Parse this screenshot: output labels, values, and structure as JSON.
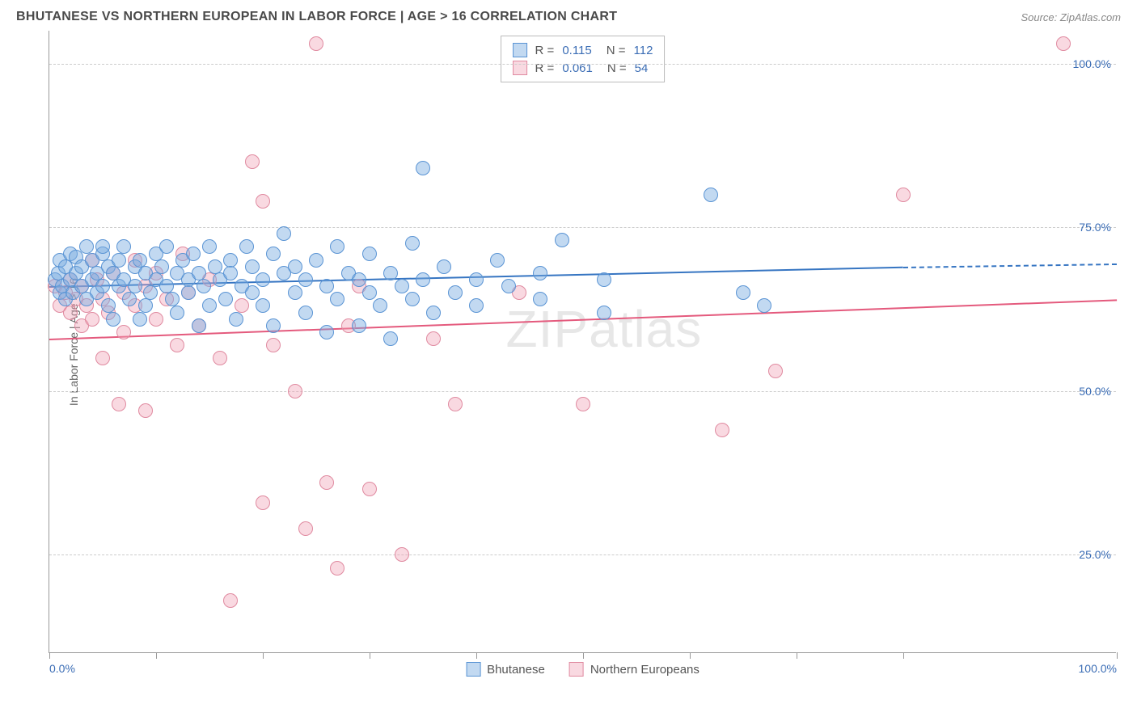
{
  "header": {
    "title": "BHUTANESE VS NORTHERN EUROPEAN IN LABOR FORCE | AGE > 16 CORRELATION CHART",
    "source": "Source: ZipAtlas.com"
  },
  "watermark": {
    "bold": "ZIP",
    "light": "atlas"
  },
  "chart": {
    "type": "scatter",
    "y_label": "In Labor Force | Age > 16",
    "xlim": [
      0,
      100
    ],
    "ylim": [
      10,
      105
    ],
    "x_ticks": [
      0,
      10,
      20,
      30,
      40,
      50,
      60,
      70,
      80,
      100
    ],
    "x_tick_labels": {
      "0": "0.0%",
      "100": "100.0%"
    },
    "y_gridlines": [
      25,
      50,
      75,
      100
    ],
    "y_tick_labels": {
      "25": "25.0%",
      "50": "50.0%",
      "75": "75.0%",
      "100": "100.0%"
    },
    "grid_color": "#cccccc",
    "axis_color": "#999999",
    "background_color": "#ffffff",
    "marker_radius": 9,
    "marker_border_width": 1.5,
    "series": {
      "bhutanese": {
        "label": "Bhutanese",
        "fill": "rgba(120,170,225,0.45)",
        "stroke": "#5a94d4",
        "line_color": "#3675c2",
        "R": "0.115",
        "N": "112",
        "trendline": {
          "x1": 0,
          "y1": 66,
          "x2": 80,
          "y2": 69,
          "dash_from_x": 80,
          "x_end": 100,
          "y_end": 69.5
        },
        "points": [
          [
            0.5,
            67
          ],
          [
            0.8,
            68
          ],
          [
            1,
            70
          ],
          [
            1,
            65
          ],
          [
            1.2,
            66
          ],
          [
            1.5,
            69
          ],
          [
            1.5,
            64
          ],
          [
            2,
            71
          ],
          [
            2,
            67
          ],
          [
            2.2,
            65
          ],
          [
            2.5,
            68
          ],
          [
            2.5,
            70.5
          ],
          [
            3,
            66
          ],
          [
            3,
            69
          ],
          [
            3.5,
            72
          ],
          [
            3.5,
            64
          ],
          [
            4,
            70
          ],
          [
            4,
            67
          ],
          [
            4.5,
            65
          ],
          [
            4.5,
            68
          ],
          [
            5,
            71
          ],
          [
            5,
            72
          ],
          [
            5,
            66
          ],
          [
            5.5,
            69
          ],
          [
            5.5,
            63
          ],
          [
            6,
            68
          ],
          [
            6,
            61
          ],
          [
            6.5,
            70
          ],
          [
            6.5,
            66
          ],
          [
            7,
            67
          ],
          [
            7,
            72
          ],
          [
            7.5,
            64
          ],
          [
            8,
            69
          ],
          [
            8,
            66
          ],
          [
            8.5,
            70
          ],
          [
            8.5,
            61
          ],
          [
            9,
            68
          ],
          [
            9,
            63
          ],
          [
            9.5,
            65
          ],
          [
            10,
            71
          ],
          [
            10,
            67
          ],
          [
            10.5,
            69
          ],
          [
            11,
            66
          ],
          [
            11,
            72
          ],
          [
            11.5,
            64
          ],
          [
            12,
            68
          ],
          [
            12,
            62
          ],
          [
            12.5,
            70
          ],
          [
            13,
            67
          ],
          [
            13,
            65
          ],
          [
            13.5,
            71
          ],
          [
            14,
            68
          ],
          [
            14,
            60
          ],
          [
            14.5,
            66
          ],
          [
            15,
            72
          ],
          [
            15,
            63
          ],
          [
            15.5,
            69
          ],
          [
            16,
            67
          ],
          [
            16.5,
            64
          ],
          [
            17,
            70
          ],
          [
            17,
            68
          ],
          [
            17.5,
            61
          ],
          [
            18,
            66
          ],
          [
            18.5,
            72
          ],
          [
            19,
            65
          ],
          [
            19,
            69
          ],
          [
            20,
            67
          ],
          [
            20,
            63
          ],
          [
            21,
            71
          ],
          [
            21,
            60
          ],
          [
            22,
            68
          ],
          [
            22,
            74
          ],
          [
            23,
            65
          ],
          [
            23,
            69
          ],
          [
            24,
            67
          ],
          [
            24,
            62
          ],
          [
            25,
            70
          ],
          [
            26,
            66
          ],
          [
            26,
            59
          ],
          [
            27,
            72
          ],
          [
            27,
            64
          ],
          [
            28,
            68
          ],
          [
            29,
            67
          ],
          [
            29,
            60
          ],
          [
            30,
            65
          ],
          [
            30,
            71
          ],
          [
            31,
            63
          ],
          [
            32,
            68
          ],
          [
            32,
            58
          ],
          [
            33,
            66
          ],
          [
            34,
            64
          ],
          [
            34,
            72.5
          ],
          [
            35,
            84
          ],
          [
            35,
            67
          ],
          [
            36,
            62
          ],
          [
            37,
            69
          ],
          [
            38,
            65
          ],
          [
            40,
            67
          ],
          [
            40,
            63
          ],
          [
            42,
            70
          ],
          [
            43,
            66
          ],
          [
            46,
            68
          ],
          [
            46,
            64
          ],
          [
            48,
            73
          ],
          [
            52,
            67
          ],
          [
            52,
            62
          ],
          [
            62,
            80
          ],
          [
            65,
            65
          ],
          [
            67,
            63
          ]
        ]
      },
      "northern_europeans": {
        "label": "Northern Europeans",
        "fill": "rgba(240,160,180,0.40)",
        "stroke": "#e08aa0",
        "line_color": "#e45a7d",
        "R": "0.061",
        "N": "54",
        "trendline": {
          "x1": 0,
          "y1": 58,
          "x2": 100,
          "y2": 64
        },
        "points": [
          [
            0.5,
            66
          ],
          [
            1,
            63
          ],
          [
            1.5,
            65
          ],
          [
            2,
            67
          ],
          [
            2,
            62
          ],
          [
            2.5,
            64
          ],
          [
            3,
            66
          ],
          [
            3,
            60
          ],
          [
            3.5,
            63
          ],
          [
            4,
            70
          ],
          [
            4,
            61
          ],
          [
            4.5,
            67
          ],
          [
            5,
            64
          ],
          [
            5,
            55
          ],
          [
            5.5,
            62
          ],
          [
            6,
            68
          ],
          [
            6.5,
            48
          ],
          [
            7,
            65
          ],
          [
            7,
            59
          ],
          [
            8,
            63
          ],
          [
            8,
            70
          ],
          [
            9,
            66
          ],
          [
            9,
            47
          ],
          [
            10,
            61
          ],
          [
            10,
            68
          ],
          [
            11,
            64
          ],
          [
            12,
            57
          ],
          [
            12.5,
            71
          ],
          [
            13,
            65
          ],
          [
            14,
            60
          ],
          [
            15,
            67
          ],
          [
            16,
            55
          ],
          [
            17,
            18
          ],
          [
            18,
            63
          ],
          [
            19,
            85
          ],
          [
            20,
            79
          ],
          [
            20,
            33
          ],
          [
            21,
            57
          ],
          [
            23,
            50
          ],
          [
            24,
            29
          ],
          [
            25,
            103
          ],
          [
            26,
            36
          ],
          [
            27,
            23
          ],
          [
            28,
            60
          ],
          [
            29,
            66
          ],
          [
            30,
            35
          ],
          [
            33,
            25
          ],
          [
            36,
            58
          ],
          [
            38,
            48
          ],
          [
            44,
            65
          ],
          [
            50,
            48
          ],
          [
            63,
            44
          ],
          [
            68,
            53
          ],
          [
            80,
            80
          ],
          [
            95,
            103
          ]
        ]
      }
    },
    "stats_box": {
      "r_label": "R =",
      "n_label": "N ="
    },
    "legend_order": [
      "bhutanese",
      "northern_europeans"
    ]
  }
}
